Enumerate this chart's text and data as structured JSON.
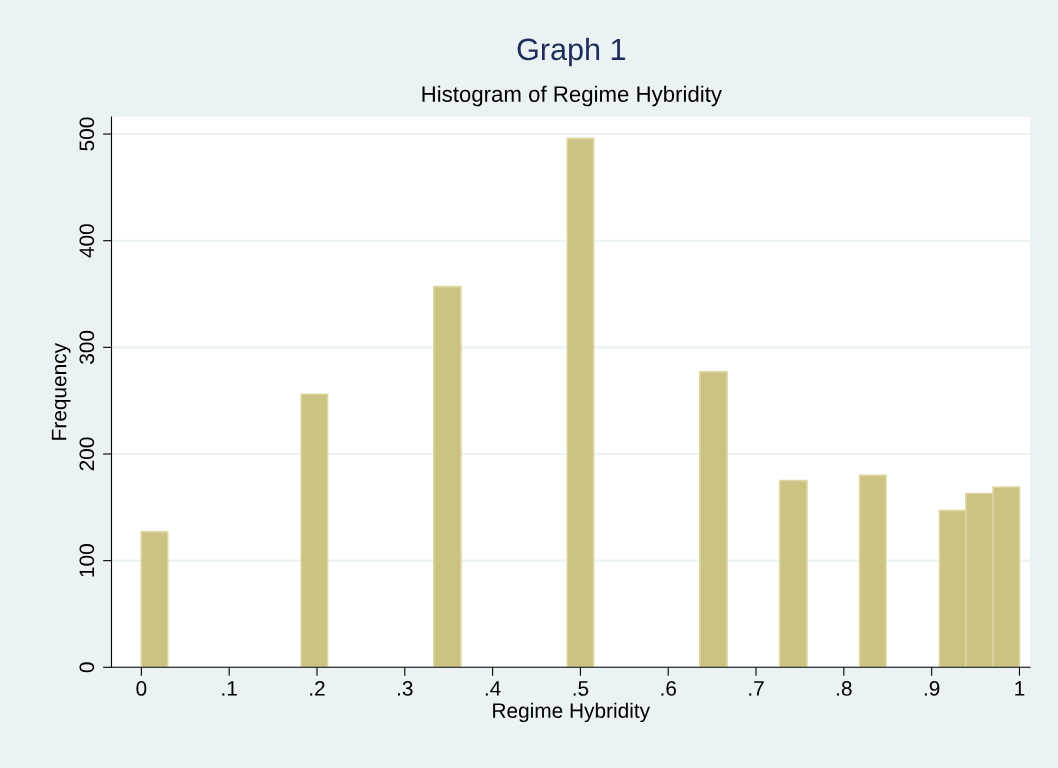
{
  "chart_data": {
    "type": "histogram",
    "title": "Graph 1",
    "subtitle": "Histogram of Regime Hybridity",
    "xlabel": "Regime Hybridity",
    "ylabel": "Frequency",
    "bins": [
      0,
      0.03,
      0.182,
      0.212,
      0.333,
      0.364,
      0.485,
      0.515,
      0.636,
      0.667,
      0.727,
      0.758,
      0.818,
      0.848,
      0.909,
      0.939,
      0.97,
      1
    ],
    "values": [
      127,
      0,
      256,
      0,
      357,
      0,
      496,
      0,
      277,
      0,
      175,
      0,
      180,
      0,
      147,
      163,
      169
    ],
    "color": "#cbc382",
    "xlim": [
      -0.034,
      1.012
    ],
    "ylim": [
      0,
      516
    ],
    "xticks": [
      0,
      {
        "value": 0.1,
        "label": ".1"
      },
      {
        "value": 0.2,
        "label": ".2"
      },
      {
        "value": 0.3,
        "label": ".3"
      },
      {
        "value": 0.4,
        "label": ".4"
      },
      {
        "value": 0.5,
        "label": ".5"
      },
      {
        "value": 0.6,
        "label": ".6"
      },
      {
        "value": 0.7,
        "label": ".7"
      },
      {
        "value": 0.8,
        "label": ".8"
      },
      {
        "value": 0.9,
        "label": ".9"
      },
      1
    ],
    "yticks": [
      0,
      100,
      200,
      300,
      400,
      500
    ],
    "grid": "y"
  }
}
